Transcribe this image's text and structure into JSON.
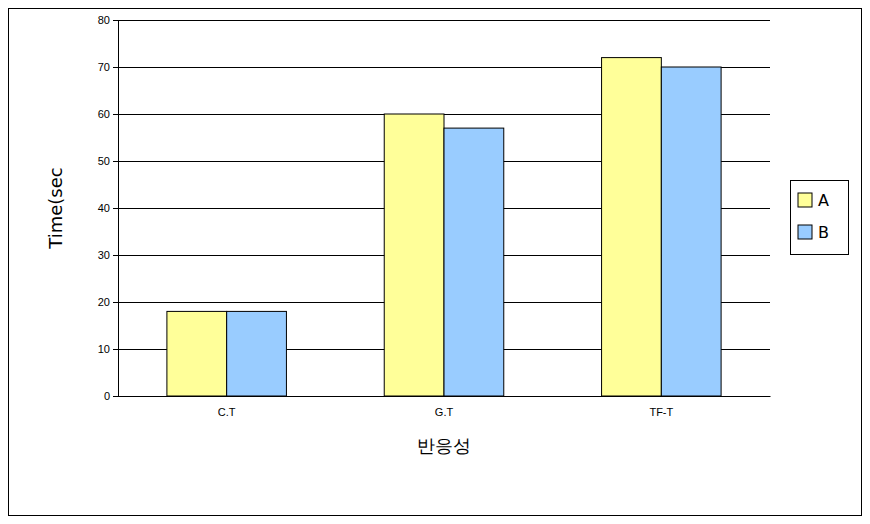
{
  "chart_data": {
    "type": "bar",
    "x_label": "반응성",
    "y_label": "Time(sec",
    "categories": [
      "C.T",
      "G.T",
      "TF-T"
    ],
    "series": [
      {
        "name": "A",
        "color": "#ffff99",
        "values": [
          18,
          60,
          72
        ]
      },
      {
        "name": "B",
        "color": "#99ccff",
        "values": [
          18,
          57,
          70
        ]
      }
    ],
    "ylim": [
      0,
      80
    ],
    "yticks": [
      0,
      10,
      20,
      30,
      40,
      50,
      60,
      70,
      80
    ],
    "grid": true,
    "legend": "right"
  }
}
